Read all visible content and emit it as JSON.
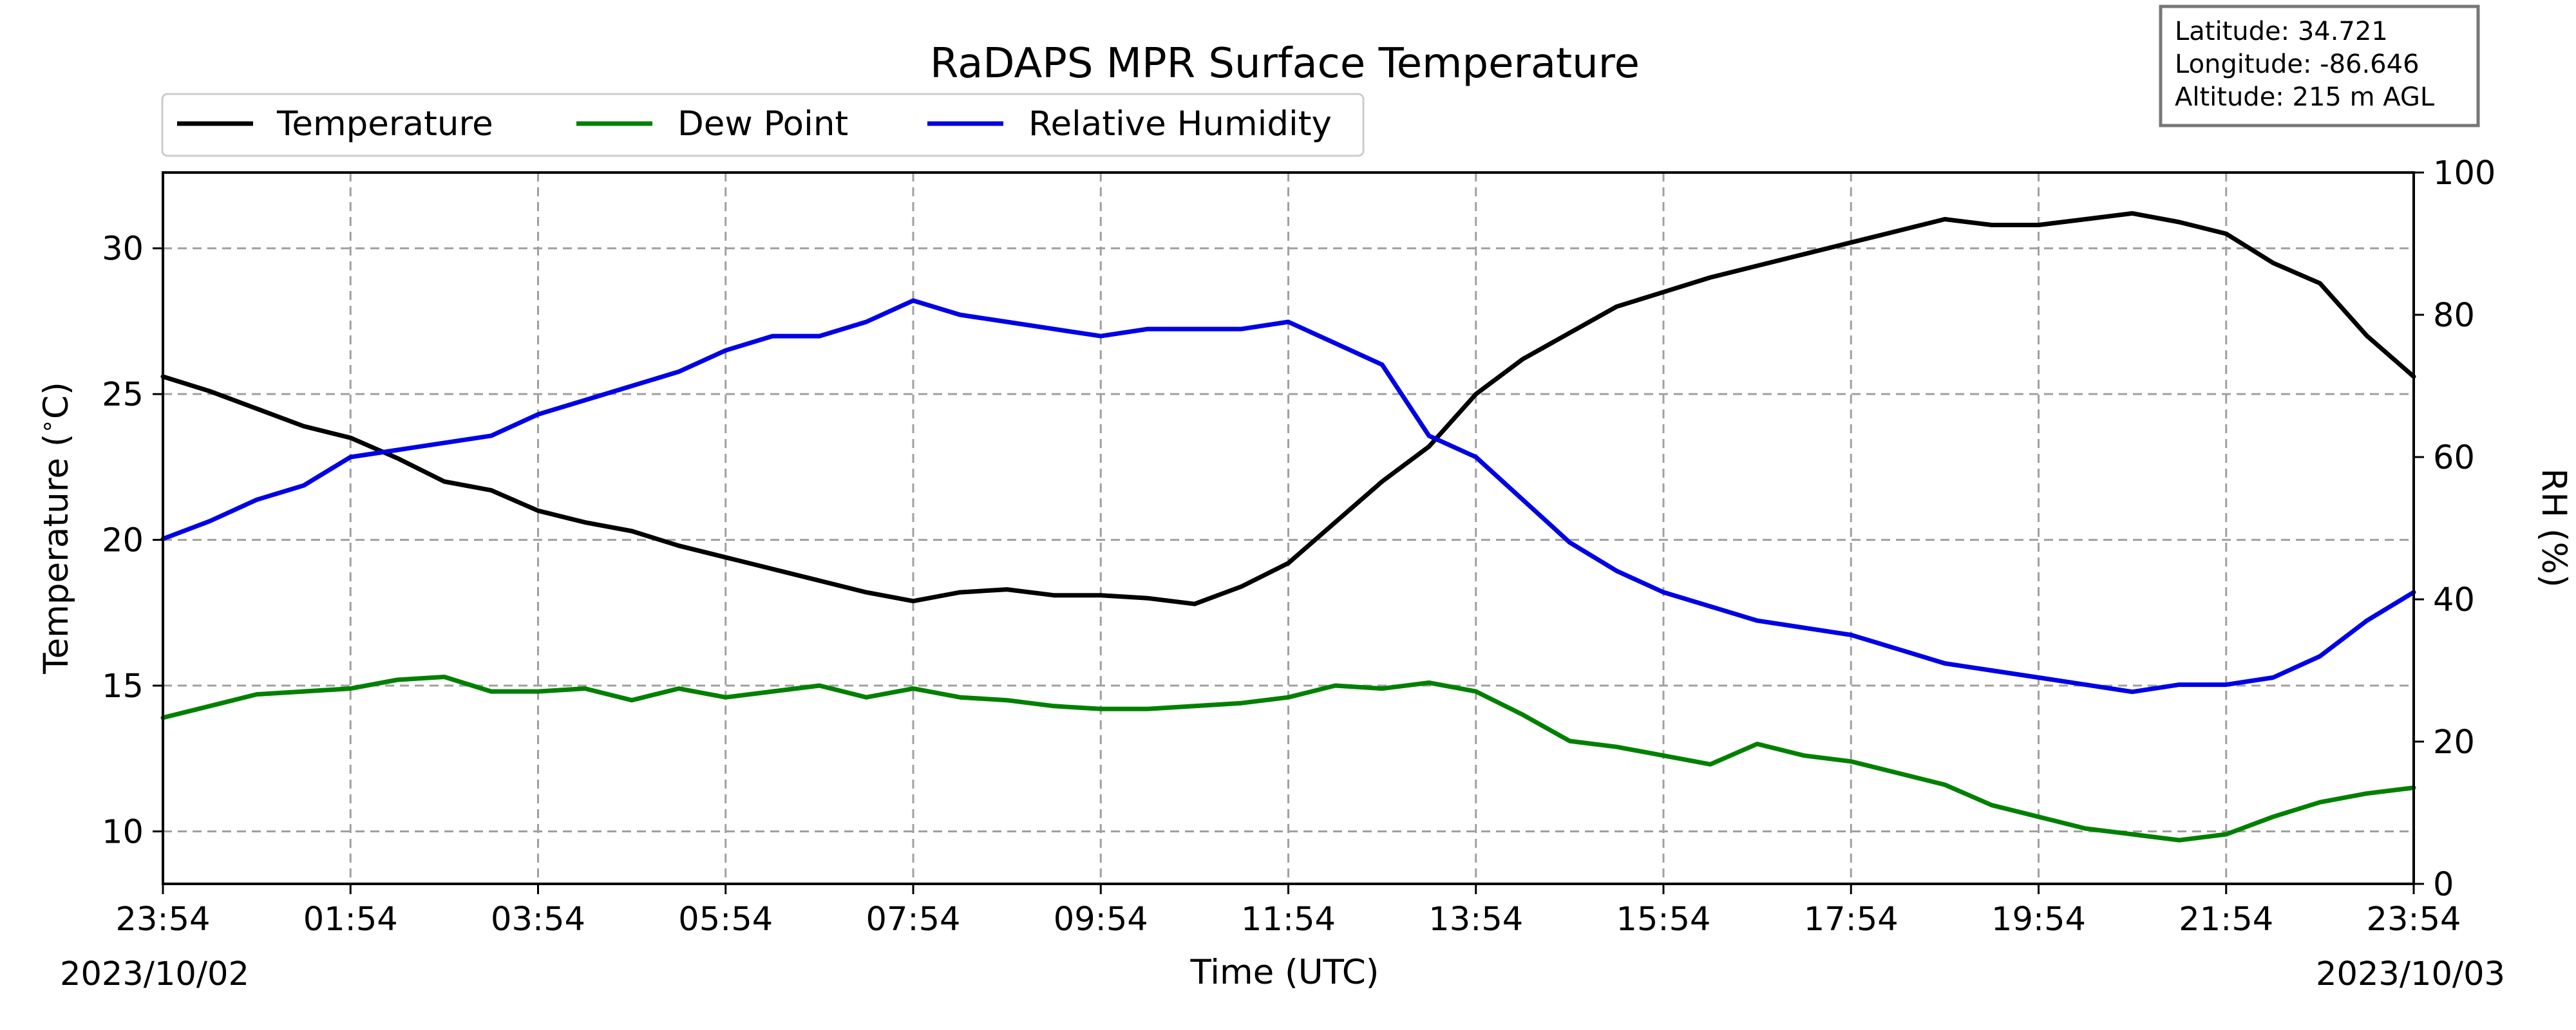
{
  "chart_data": {
    "type": "line",
    "title": "RaDAPS MPR Surface Temperature",
    "xlabel": "Time (UTC)",
    "ylabel": "Temperature ($^\\circ$C)",
    "ylabel_right": "RH (%)",
    "x_tick_labels": [
      "23:54",
      "01:54",
      "03:54",
      "05:54",
      "07:54",
      "09:54",
      "11:54",
      "13:54",
      "15:54",
      "17:54",
      "19:54",
      "21:54",
      "23:54"
    ],
    "x_hours_ticks": [
      0,
      2,
      4,
      6,
      8,
      10,
      12,
      14,
      16,
      18,
      20,
      22,
      24
    ],
    "date_start": "2023/10/02",
    "date_end": "2023/10/03",
    "y_left_ticks": [
      10,
      15,
      20,
      25,
      30
    ],
    "y_left_lim": [
      8.2,
      32.6
    ],
    "y_right_ticks": [
      0,
      20,
      40,
      60,
      80,
      100
    ],
    "y_right_lim": [
      0,
      100
    ],
    "grid": true,
    "legend_position": "top-left",
    "x_hours": [
      0,
      0.5,
      1,
      1.5,
      2,
      2.5,
      3,
      3.5,
      4,
      4.5,
      5,
      5.5,
      6,
      6.5,
      7,
      7.5,
      8,
      8.5,
      9,
      9.5,
      10,
      10.5,
      11,
      11.5,
      12,
      12.5,
      13,
      13.5,
      14,
      14.5,
      15,
      15.5,
      16,
      16.5,
      17,
      17.5,
      18,
      18.5,
      19,
      19.5,
      20,
      20.5,
      21,
      21.5,
      22,
      22.5,
      23,
      23.5,
      24
    ],
    "series": [
      {
        "name": "Temperature",
        "axis": "left",
        "color": "#000000",
        "values": [
          25.6,
          25.1,
          24.5,
          23.9,
          23.5,
          22.8,
          22.0,
          21.7,
          21.0,
          20.6,
          20.3,
          19.8,
          19.4,
          19.0,
          18.6,
          18.2,
          17.9,
          18.2,
          18.3,
          18.1,
          18.1,
          18.0,
          17.8,
          18.4,
          19.2,
          20.6,
          22.0,
          23.2,
          25.0,
          26.2,
          27.1,
          28.0,
          28.5,
          29.0,
          29.4,
          29.8,
          30.2,
          30.6,
          31.0,
          30.8,
          30.8,
          31.0,
          31.2,
          30.9,
          30.5,
          29.5,
          28.8,
          27.0,
          25.6
        ]
      },
      {
        "name": "Dew Point",
        "axis": "left",
        "color": "#008000",
        "values": [
          13.9,
          14.3,
          14.7,
          14.8,
          14.9,
          15.2,
          15.3,
          14.8,
          14.8,
          14.9,
          14.5,
          14.9,
          14.6,
          14.8,
          15.0,
          14.6,
          14.9,
          14.6,
          14.5,
          14.3,
          14.2,
          14.2,
          14.3,
          14.4,
          14.6,
          15.0,
          14.9,
          15.1,
          14.8,
          14.0,
          13.1,
          12.9,
          12.6,
          12.3,
          13.0,
          12.6,
          12.4,
          12.0,
          11.6,
          10.9,
          10.5,
          10.1,
          9.9,
          9.7,
          9.9,
          10.5,
          11.0,
          11.3,
          11.5
        ]
      },
      {
        "name": "Relative Humidity",
        "axis": "right",
        "color": "#0000e6",
        "values": [
          48.5,
          51,
          54,
          56,
          60,
          61,
          62,
          63,
          66,
          68,
          70,
          72,
          75,
          77,
          77,
          79,
          82,
          80,
          79,
          78,
          77,
          78,
          78,
          78,
          79,
          76,
          73,
          63,
          60,
          54,
          48,
          44,
          41,
          39,
          37,
          36,
          35,
          33,
          31,
          30,
          29,
          28,
          27,
          28,
          28,
          29,
          32,
          37,
          41
        ]
      }
    ]
  },
  "info_box": {
    "latitude": "Latitude: 34.721",
    "longitude": "Longitude: -86.646",
    "altitude": "Altitude: 215 m AGL"
  }
}
